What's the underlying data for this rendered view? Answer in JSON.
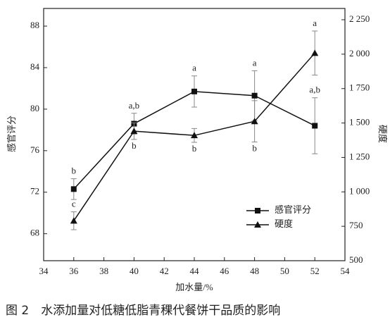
{
  "chart_data": {
    "type": "line",
    "x_label": "加水量/%",
    "y_label": "感官评分",
    "y2_label": "硬度",
    "caption": "图 2　水添加量对低糖低脂青稞代餐饼干品质的影响",
    "x": [
      36,
      40,
      44,
      48,
      52
    ],
    "xlim": [
      34,
      54
    ],
    "xticks": [
      34,
      36,
      38,
      40,
      42,
      44,
      46,
      48,
      50,
      52,
      54
    ],
    "ylim": [
      65.4,
      89.7
    ],
    "yticks": [
      68,
      72,
      76,
      80,
      84,
      88
    ],
    "y2lim": [
      500,
      2332
    ],
    "y2ticks": [
      {
        "value": 500,
        "label": "500"
      },
      {
        "value": 750,
        "label": "750"
      },
      {
        "value": 1000,
        "label": "1 000"
      },
      {
        "value": 1250,
        "label": "1 250"
      },
      {
        "value": 1500,
        "label": "1 500"
      },
      {
        "value": 1750,
        "label": "1 750"
      },
      {
        "value": 2000,
        "label": "2 000"
      },
      {
        "value": 2250,
        "label": "2 250"
      }
    ],
    "legend": "lower right",
    "series": [
      {
        "name": "感官评分",
        "color": "#111111",
        "marker": "square",
        "values": [
          72.3,
          78.6,
          81.7,
          81.3,
          78.4
        ],
        "errors": [
          1.0,
          1.0,
          1.5,
          2.4,
          2.7
        ],
        "labels": [
          "b",
          "a,b",
          "a",
          "a",
          "a,b"
        ]
      },
      {
        "name": "硬度",
        "color": "#111111",
        "marker": "triangle",
        "axis": "y2",
        "values": [
          790,
          1441,
          1410,
          1512,
          2008
        ],
        "errors": [
          65,
          60,
          50,
          150,
          160
        ],
        "labels": [
          "c",
          "b",
          "b",
          "b",
          "a"
        ]
      }
    ]
  }
}
